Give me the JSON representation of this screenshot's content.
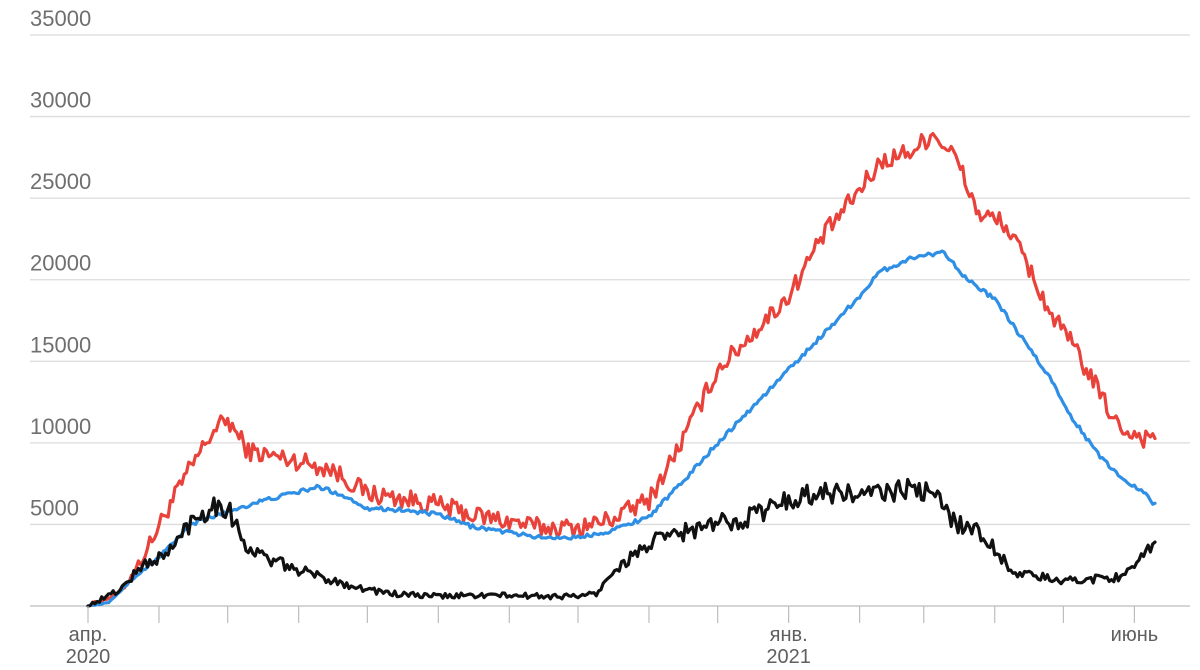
{
  "chart_data": {
    "type": "line",
    "title": "",
    "xlabel": "",
    "ylabel": "",
    "ylim": [
      0,
      35000
    ],
    "yticks": [
      35000,
      30000,
      25000,
      20000,
      15000,
      10000,
      5000
    ],
    "grid": true,
    "legend": "none",
    "x_range": [
      "2020-03-01",
      "2021-06-10"
    ],
    "x_month_marks": [
      "2020-03-01",
      "2020-04-01",
      "2020-05-01",
      "2020-06-01",
      "2020-07-01",
      "2020-08-01",
      "2020-09-01",
      "2020-10-01",
      "2020-11-01",
      "2020-12-01",
      "2021-01-01",
      "2021-02-01",
      "2021-03-01",
      "2021-04-01",
      "2021-05-01",
      "2021-06-01"
    ],
    "x_labels": [
      {
        "date": "2020-03-01",
        "line1": "апр.",
        "line2": "2020"
      },
      {
        "date": "2021-01-01",
        "line1": "янв.",
        "line2": "2021"
      },
      {
        "date": "2021-06-01",
        "line1": "июнь",
        "line2": ""
      }
    ],
    "series": [
      {
        "color": "#e8423a",
        "noise": 600,
        "points": [
          [
            "2020-03-01",
            0
          ],
          [
            "2020-03-15",
            800
          ],
          [
            "2020-03-25",
            3000
          ],
          [
            "2020-04-05",
            6000
          ],
          [
            "2020-04-15",
            8500
          ],
          [
            "2020-04-25",
            10800
          ],
          [
            "2020-05-01",
            11400
          ],
          [
            "2020-05-10",
            9500
          ],
          [
            "2020-05-20",
            9200
          ],
          [
            "2020-06-01",
            8900
          ],
          [
            "2020-06-15",
            8400
          ],
          [
            "2020-07-01",
            6900
          ],
          [
            "2020-07-15",
            6600
          ],
          [
            "2020-08-01",
            6200
          ],
          [
            "2020-08-15",
            5600
          ],
          [
            "2020-09-01",
            5200
          ],
          [
            "2020-09-15",
            4800
          ],
          [
            "2020-10-01",
            4800
          ],
          [
            "2020-10-15",
            5300
          ],
          [
            "2020-11-01",
            6500
          ],
          [
            "2020-11-15",
            10000
          ],
          [
            "2020-12-01",
            14500
          ],
          [
            "2020-12-15",
            16500
          ],
          [
            "2021-01-01",
            19000
          ],
          [
            "2021-01-15",
            22500
          ],
          [
            "2021-02-01",
            25500
          ],
          [
            "2021-02-10",
            27200
          ],
          [
            "2021-02-25",
            28000
          ],
          [
            "2021-03-05",
            29000
          ],
          [
            "2021-03-15",
            27500
          ],
          [
            "2021-03-25",
            24000
          ],
          [
            "2021-04-05",
            23500
          ],
          [
            "2021-04-15",
            21000
          ],
          [
            "2021-04-25",
            18000
          ],
          [
            "2021-05-05",
            16000
          ],
          [
            "2021-05-15",
            13500
          ],
          [
            "2021-05-25",
            11000
          ],
          [
            "2021-06-05",
            10300
          ],
          [
            "2021-06-10",
            10500
          ]
        ]
      },
      {
        "color": "#2f8fe4",
        "noise": 130,
        "points": [
          [
            "2020-03-01",
            0
          ],
          [
            "2020-03-10",
            200
          ],
          [
            "2020-03-20",
            1600
          ],
          [
            "2020-04-01",
            3000
          ],
          [
            "2020-04-15",
            5000
          ],
          [
            "2020-05-01",
            5800
          ],
          [
            "2020-05-15",
            6400
          ],
          [
            "2020-06-01",
            7000
          ],
          [
            "2020-06-10",
            7300
          ],
          [
            "2020-06-20",
            6800
          ],
          [
            "2020-07-01",
            6000
          ],
          [
            "2020-07-15",
            5900
          ],
          [
            "2020-08-01",
            5600
          ],
          [
            "2020-08-15",
            4900
          ],
          [
            "2020-09-01",
            4500
          ],
          [
            "2020-09-15",
            4200
          ],
          [
            "2020-10-01",
            4200
          ],
          [
            "2020-10-15",
            4600
          ],
          [
            "2020-11-01",
            5500
          ],
          [
            "2020-11-15",
            7500
          ],
          [
            "2020-12-01",
            10000
          ],
          [
            "2020-12-15",
            12000
          ],
          [
            "2021-01-01",
            14500
          ],
          [
            "2021-01-15",
            16500
          ],
          [
            "2021-02-01",
            19000
          ],
          [
            "2021-02-10",
            20500
          ],
          [
            "2021-02-25",
            21400
          ],
          [
            "2021-03-10",
            21700
          ],
          [
            "2021-03-20",
            20000
          ],
          [
            "2021-04-01",
            18800
          ],
          [
            "2021-04-15",
            16000
          ],
          [
            "2021-04-25",
            14000
          ],
          [
            "2021-05-05",
            11500
          ],
          [
            "2021-05-15",
            9500
          ],
          [
            "2021-05-25",
            8000
          ],
          [
            "2021-06-05",
            7000
          ],
          [
            "2021-06-10",
            6200
          ]
        ]
      },
      {
        "color": "#111111",
        "noise": 650,
        "points": [
          [
            "2020-03-01",
            0
          ],
          [
            "2020-03-15",
            1000
          ],
          [
            "2020-03-25",
            2500
          ],
          [
            "2020-04-05",
            3200
          ],
          [
            "2020-04-15",
            5200
          ],
          [
            "2020-04-25",
            6200
          ],
          [
            "2020-05-01",
            6000
          ],
          [
            "2020-05-10",
            3500
          ],
          [
            "2020-05-20",
            2800
          ],
          [
            "2020-06-01",
            2200
          ],
          [
            "2020-06-15",
            1600
          ],
          [
            "2020-07-01",
            1000
          ],
          [
            "2020-07-15",
            700
          ],
          [
            "2020-08-01",
            600
          ],
          [
            "2020-08-15",
            650
          ],
          [
            "2020-09-01",
            650
          ],
          [
            "2020-09-15",
            600
          ],
          [
            "2020-10-01",
            600
          ],
          [
            "2020-10-10",
            800
          ],
          [
            "2020-10-15",
            2000
          ],
          [
            "2020-11-01",
            3800
          ],
          [
            "2020-11-15",
            4500
          ],
          [
            "2020-12-01",
            5000
          ],
          [
            "2020-12-15",
            5500
          ],
          [
            "2021-01-01",
            6500
          ],
          [
            "2021-01-15",
            7000
          ],
          [
            "2021-02-01",
            6800
          ],
          [
            "2021-02-15",
            7000
          ],
          [
            "2021-02-25",
            7200
          ],
          [
            "2021-03-05",
            6800
          ],
          [
            "2021-03-15",
            5200
          ],
          [
            "2021-03-25",
            4500
          ],
          [
            "2021-04-01",
            3500
          ],
          [
            "2021-04-10",
            2000
          ],
          [
            "2021-04-20",
            1800
          ],
          [
            "2021-05-01",
            1500
          ],
          [
            "2021-05-15",
            1700
          ],
          [
            "2021-05-25",
            1800
          ],
          [
            "2021-06-01",
            2200
          ],
          [
            "2021-06-05",
            3000
          ],
          [
            "2021-06-10",
            4000
          ]
        ]
      }
    ]
  }
}
